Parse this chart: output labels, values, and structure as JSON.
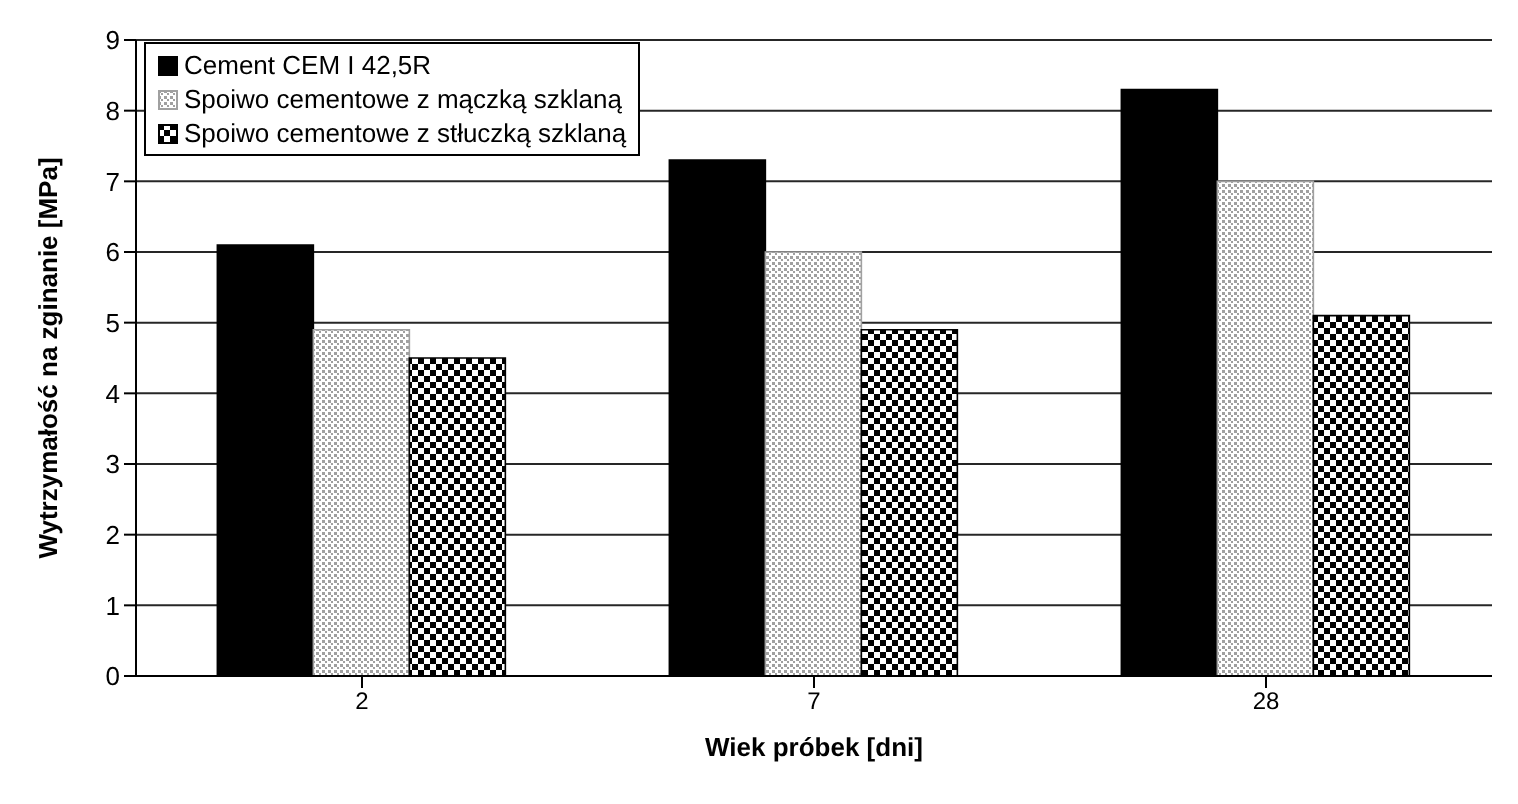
{
  "chart_data": {
    "type": "bar",
    "xlabel": "Wiek próbek [dni]",
    "ylabel": "Wytrzymałość na zginanie [MPa]",
    "categories": [
      "2",
      "7",
      "28"
    ],
    "series": [
      {
        "name": "Cement CEM I 42,5R",
        "color": "#000000",
        "values": [
          6.1,
          7.3,
          8.3
        ]
      },
      {
        "name": "Spoiwo cementowe z mączką szklaną",
        "color": "#a0a0a0",
        "values": [
          4.9,
          6.0,
          7.0
        ]
      },
      {
        "name": "Spoiwo cementowe z stłuczką szklaną",
        "color": "#000000",
        "values": [
          4.5,
          4.9,
          5.1
        ]
      }
    ],
    "ylim": [
      0,
      9
    ],
    "yticks": [
      0,
      1,
      2,
      3,
      4,
      5,
      6,
      7,
      8,
      9
    ],
    "grid": "y",
    "legend": "top left"
  }
}
